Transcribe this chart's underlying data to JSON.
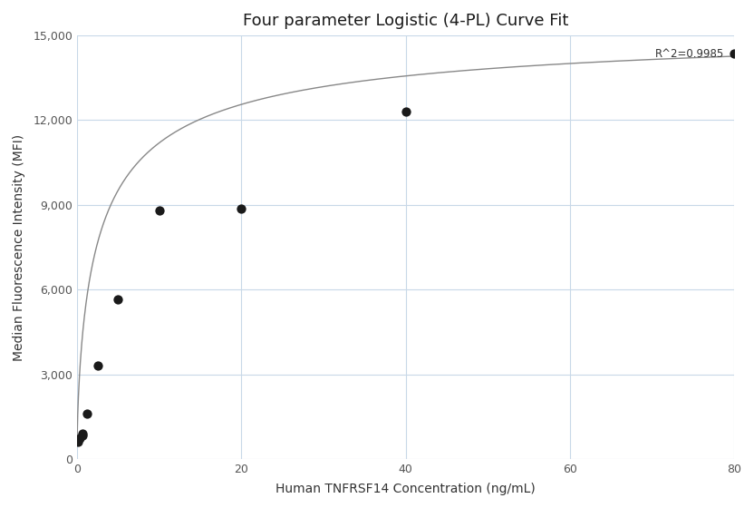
{
  "title": "Four parameter Logistic (4-PL) Curve Fit",
  "xlabel": "Human TNFRSF14 Concentration (ng/mL)",
  "ylabel": "Median Fluorescence Intensity (MFI)",
  "scatter_x": [
    0.156,
    0.313,
    0.625,
    0.625,
    1.25,
    2.5,
    5.0,
    10.0,
    20.0,
    40.0,
    80.0
  ],
  "scatter_y": [
    600,
    750,
    820,
    900,
    1600,
    3300,
    5650,
    8800,
    8850,
    12300,
    14350
  ],
  "xlim": [
    0,
    80
  ],
  "ylim": [
    0,
    15000
  ],
  "xticks": [
    0,
    20,
    40,
    60,
    80
  ],
  "yticks": [
    0,
    3000,
    6000,
    9000,
    12000,
    15000
  ],
  "r_squared": "R^2=0.9985",
  "curve_color": "#888888",
  "scatter_color": "#1a1a1a",
  "background_color": "#ffffff",
  "grid_color": "#c8d8e8",
  "title_fontsize": 13,
  "label_fontsize": 10,
  "4pl_A": 420.0,
  "4pl_B": 0.72,
  "4pl_C": 2.8,
  "4pl_D": 15500.0
}
